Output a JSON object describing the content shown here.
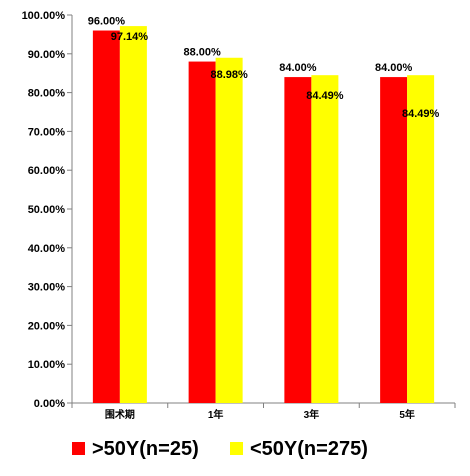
{
  "chart_data": {
    "type": "bar",
    "title": "",
    "xlabel": "",
    "ylabel": "",
    "categories": [
      "围术期",
      "1年",
      "3年",
      "5年"
    ],
    "series": [
      {
        "name": ">50Y(n=25)",
        "color": "#ff0000",
        "values": [
          96.0,
          88.0,
          84.0,
          84.0
        ],
        "labels": [
          "96.00%",
          "88.00%",
          "84.00%",
          "84.00%"
        ]
      },
      {
        "name": "<50Y(n=275)",
        "color": "#ffff00",
        "values": [
          97.14,
          88.98,
          84.49,
          84.49
        ],
        "labels": [
          "97.14%",
          "88.98%",
          "84.49%",
          "84.49%"
        ]
      }
    ],
    "ylim": [
      0,
      100
    ],
    "yticks": [
      0,
      10,
      20,
      30,
      40,
      50,
      60,
      70,
      80,
      90,
      100
    ],
    "ytick_labels": [
      "0.00%",
      "10.00%",
      "20.00%",
      "30.00%",
      "40.00%",
      "50.00%",
      "60.00%",
      "70.00%",
      "80.00%",
      "90.00%",
      "100.00%"
    ],
    "grid": false,
    "legend_position": "bottom"
  }
}
